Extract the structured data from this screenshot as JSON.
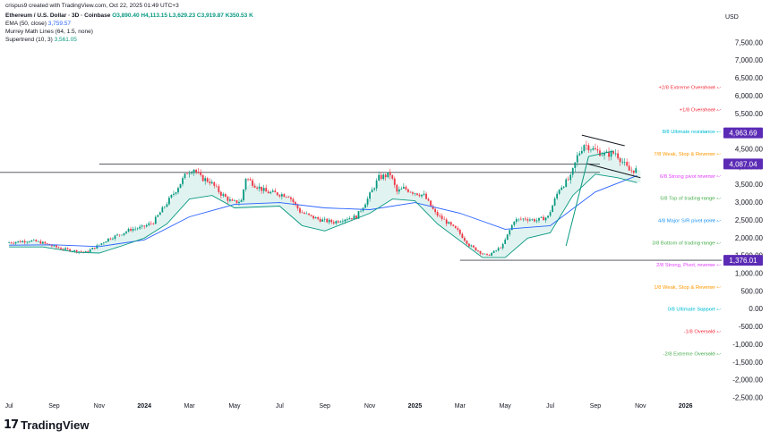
{
  "header": {
    "created": "crispus9 created with TradingView.com, Oct 22, 2025 01:49 UTC+3",
    "symbol_title": "Ethereum / U.S. Dollar · 3D · Coinbase",
    "ohlc": "O3,890.40  H4,113.15  L3,629.23  C3,919.87  K350.53 K",
    "indicators": [
      {
        "label": "EMA (50, close)",
        "value": "3,759.57",
        "color": "#2962ff"
      },
      {
        "label": "Murrey Math Lines (64, 1.5, none)",
        "value": "",
        "color": "#787b86"
      },
      {
        "label": "Supertrend (10, 3)",
        "value": "3,561.05",
        "color": "#089981"
      }
    ]
  },
  "logo": {
    "mark": "17",
    "text": "TradingView"
  },
  "chart_data": {
    "type": "candlestick",
    "currency": "USD",
    "ylim": [
      -2500,
      8000
    ],
    "y_ticks": [
      "-2,500.00",
      "-2,000.00",
      "-1,500.00",
      "-1,000.00",
      "-500.00",
      "0.00",
      "500.00",
      "1,000.00",
      "1,500.00",
      "2,000.00",
      "2,500.00",
      "3,000.00",
      "3,500.00",
      "4,000.00",
      "4,500.00",
      "5,000.00",
      "5,500.00",
      "6,000.00",
      "6,500.00",
      "7,000.00",
      "7,500.00"
    ],
    "y_tick_values": [
      -2500,
      -2000,
      -1500,
      -1000,
      -500,
      0,
      500,
      1000,
      1500,
      2000,
      2500,
      3000,
      3500,
      4000,
      4500,
      5000,
      5500,
      6000,
      6500,
      7000,
      7500
    ],
    "x_ticks": [
      "Jul",
      "Sep",
      "Nov",
      "2024",
      "Mar",
      "May",
      "Jul",
      "Sep",
      "Nov",
      "2025",
      "Mar",
      "May",
      "Jul",
      "Sep",
      "Nov",
      "2026"
    ],
    "x_tick_month_index": [
      0,
      2,
      4,
      6,
      8,
      10,
      12,
      14,
      16,
      18,
      20,
      22,
      24,
      26,
      28,
      30
    ],
    "x_month_range": [
      -0.4,
      31.6
    ],
    "price_tags": [
      {
        "text": "4,963.69",
        "value": 4963.69,
        "color": "#5b2bb5"
      },
      {
        "text": "4,087.04",
        "value": 4087.04,
        "color": "#5b2bb5"
      },
      {
        "text": "1,376.01",
        "value": 1376.01,
        "color": "#5b2bb5"
      }
    ],
    "murrey_lines": [
      {
        "text": "+2/8 Extreme Overshoot",
        "value": 6250,
        "color": "#f23645"
      },
      {
        "text": "+1/8 Overshoot",
        "value": 5625,
        "color": "#f23645"
      },
      {
        "text": "8/8 Ultimate resistance",
        "value": 5000,
        "color": "#00bcd4"
      },
      {
        "text": "7/8 Weak, Stop & Reverse",
        "value": 4375,
        "color": "#ff9800"
      },
      {
        "text": "6/8 Strong pivot reverse",
        "value": 3750,
        "color": "#e040fb"
      },
      {
        "text": "5/8 Top of trading range",
        "value": 3125,
        "color": "#4caf50"
      },
      {
        "text": "4/8 Major S/R pivot point",
        "value": 2500,
        "color": "#2196f3"
      },
      {
        "text": "3/8 Bottom of trading range",
        "value": 1875,
        "color": "#4caf50"
      },
      {
        "text": "2/8 Strong, Pivot, reverse",
        "value": 1250,
        "color": "#e040fb"
      },
      {
        "text": "1/8 Weak, Stop & Reverse",
        "value": 625,
        "color": "#ff9800"
      },
      {
        "text": "0/8 Ultimate Support",
        "value": 0,
        "color": "#00bcd4"
      },
      {
        "text": "-1/8 Oversold",
        "value": -625,
        "color": "#f23645"
      },
      {
        "text": "-2/8 Extreme Oversold",
        "value": -1250,
        "color": "#4caf50"
      }
    ],
    "horizontal_levels": [
      {
        "value": 4087,
        "from_month": 4,
        "to_month": 26.2
      },
      {
        "value": 3850,
        "from_month": -0.4,
        "to_month": 26.2
      },
      {
        "value": 1376,
        "from_month": 20,
        "to_month": 31.6
      }
    ],
    "price_path": [
      [
        0,
        1870
      ],
      [
        0.5,
        1900
      ],
      [
        1,
        1930
      ],
      [
        1.5,
        1880
      ],
      [
        2,
        1780
      ],
      [
        2.5,
        1690
      ],
      [
        3,
        1640
      ],
      [
        3.5,
        1600
      ],
      [
        4,
        1770
      ],
      [
        4.5,
        1980
      ],
      [
        5,
        2100
      ],
      [
        5.5,
        2250
      ],
      [
        6,
        2300
      ],
      [
        6.5,
        2450
      ],
      [
        7,
        2900
      ],
      [
        7.5,
        3350
      ],
      [
        8,
        3850
      ],
      [
        8.3,
        3950
      ],
      [
        8.6,
        3700
      ],
      [
        9,
        3600
      ],
      [
        9.5,
        3250
      ],
      [
        10,
        3000
      ],
      [
        10.4,
        3050
      ],
      [
        10.6,
        3700
      ],
      [
        11,
        3500
      ],
      [
        11.5,
        3300
      ],
      [
        12,
        3250
      ],
      [
        12.5,
        3200
      ],
      [
        13,
        2750
      ],
      [
        13.5,
        2600
      ],
      [
        14,
        2500
      ],
      [
        14.5,
        2450
      ],
      [
        15,
        2550
      ],
      [
        15.5,
        2600
      ],
      [
        16,
        3100
      ],
      [
        16.5,
        3700
      ],
      [
        17,
        3800
      ],
      [
        17.3,
        3300
      ],
      [
        17.6,
        3400
      ],
      [
        18,
        3300
      ],
      [
        18.5,
        3200
      ],
      [
        19,
        2700
      ],
      [
        19.5,
        2450
      ],
      [
        20,
        2200
      ],
      [
        20.5,
        1800
      ],
      [
        21,
        1600
      ],
      [
        21.3,
        1500
      ],
      [
        21.7,
        1650
      ],
      [
        22,
        1800
      ],
      [
        22.5,
        2500
      ],
      [
        23,
        2550
      ],
      [
        23.5,
        2500
      ],
      [
        24,
        2600
      ],
      [
        24.5,
        3400
      ],
      [
        25,
        3700
      ],
      [
        25.3,
        4300
      ],
      [
        25.6,
        4650
      ],
      [
        26,
        4500
      ],
      [
        26.5,
        4350
      ],
      [
        27,
        4400
      ],
      [
        27.3,
        4150
      ],
      [
        27.6,
        3900
      ],
      [
        27.85,
        3919
      ]
    ],
    "series": [
      {
        "name": "EMA (50, close)",
        "color": "#2962ff",
        "points": [
          [
            0,
            1800
          ],
          [
            2,
            1810
          ],
          [
            4,
            1760
          ],
          [
            6,
            1950
          ],
          [
            8,
            2600
          ],
          [
            10,
            2950
          ],
          [
            12,
            3000
          ],
          [
            14,
            2850
          ],
          [
            16,
            2800
          ],
          [
            18,
            3000
          ],
          [
            20,
            2700
          ],
          [
            22,
            2250
          ],
          [
            24,
            2350
          ],
          [
            26,
            3300
          ],
          [
            27.85,
            3760
          ]
        ]
      },
      {
        "name": "Supertrend (10, 3)",
        "color": "#089981",
        "points": [
          [
            0,
            1750
          ],
          [
            1.5,
            1750
          ],
          [
            3,
            1600
          ],
          [
            4,
            1580
          ],
          [
            5,
            1780
          ],
          [
            6,
            2000
          ],
          [
            7,
            2400
          ],
          [
            8,
            3100
          ],
          [
            9,
            3200
          ],
          [
            10,
            2850
          ],
          [
            12,
            2900
          ],
          [
            13,
            2350
          ],
          [
            14,
            2200
          ],
          [
            16,
            2700
          ],
          [
            17,
            3100
          ],
          [
            18,
            3050
          ],
          [
            19,
            2400
          ],
          [
            21,
            1450
          ],
          [
            22,
            1450
          ],
          [
            23,
            2000
          ],
          [
            24,
            2150
          ],
          [
            25,
            3200
          ],
          [
            26,
            3800
          ],
          [
            27,
            3700
          ],
          [
            27.85,
            3561
          ]
        ]
      }
    ],
    "trendlines": [
      {
        "points": [
          [
            25.4,
            4900
          ],
          [
            27.3,
            4600
          ]
        ],
        "color": "#131722"
      },
      {
        "points": [
          [
            25.6,
            4100
          ],
          [
            28.0,
            3700
          ]
        ],
        "color": "#131722"
      },
      {
        "points": [
          [
            24.7,
            1780
          ],
          [
            25.7,
            4300
          ]
        ],
        "color": "#089981"
      },
      {
        "points": [
          [
            25.7,
            4300
          ],
          [
            26.8,
            4450
          ]
        ],
        "color": "#089981"
      }
    ]
  }
}
